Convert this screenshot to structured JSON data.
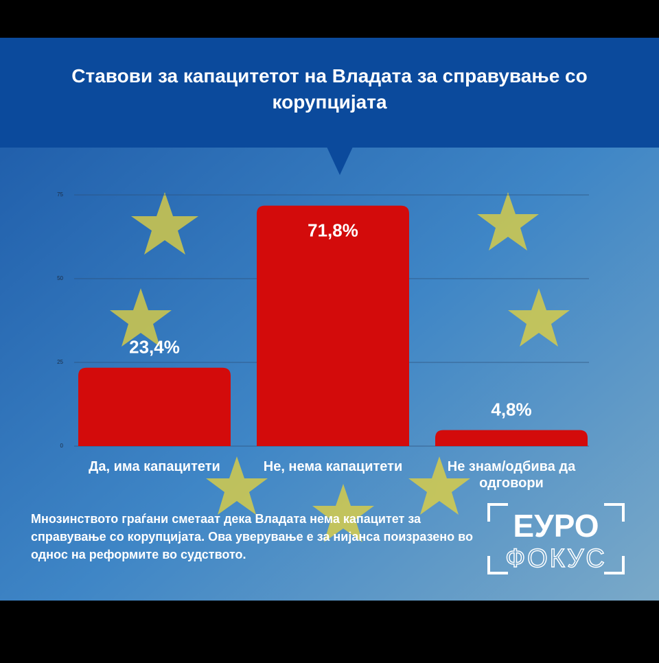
{
  "chart_data": {
    "type": "bar",
    "title": "Ставови за капацитетот на Владата за справување со корупцијата",
    "categories": [
      "Да, има капацитети",
      "Не, нема капацитети",
      "Не знам/одбива да одговори"
    ],
    "values": [
      23.4,
      71.8,
      4.8
    ],
    "value_labels": [
      "23,4%",
      "71,8%",
      "4,8%"
    ],
    "color": "#d30b0b",
    "ylim": [
      0,
      75
    ],
    "yticks": [
      0,
      25,
      50,
      75
    ],
    "grid": true
  },
  "note": "Мнозинството граѓани сметаат дека Владата нема капацитет за справување со корупцијата. Ова уверување е за нијанса поизразено во однос на реформите во судството.",
  "logo": {
    "top": "ЕУРО",
    "bottom": "ФОКУС"
  }
}
